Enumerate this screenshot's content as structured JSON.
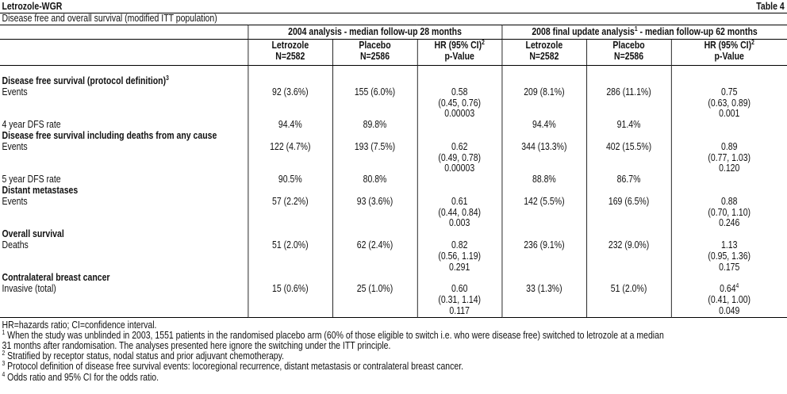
{
  "header": {
    "title": "Letrozole-WGR",
    "table_label": "Table 4",
    "subtitle": "Disease free and overall survival (modified ITT population)"
  },
  "groups": {
    "g2004": "2004 analysis - median follow-up 28 months",
    "g2008_pre": "2008 final update analysis",
    "g2008_sup": "1",
    "g2008_post": " - median follow-up 62 months"
  },
  "columns": {
    "letro": "Letrozole",
    "letro_n": "N=2582",
    "plac": "Placebo",
    "plac_n": "N=2586",
    "hr": "HR (95% CI)",
    "hr_sup": "2",
    "pval": "p-Value"
  },
  "rows": {
    "dfs_title": "Disease free survival (protocol definition)",
    "dfs_title_sup": "3",
    "dfs_events_label": "Events",
    "dfs_e": [
      "92 (3.6%)",
      "155 (6.0%)",
      "0.58",
      "(0.45, 0.76)",
      "0.00003",
      "209 (8.1%)",
      "286 (11.1%)",
      "0.75",
      "(0.63, 0.89)",
      "0.001"
    ],
    "dfs4_label": "4 year DFS rate",
    "dfs4": [
      "94.4%",
      "89.8%",
      "94.4%",
      "91.4%"
    ],
    "dfsany_title": "Disease free survival including deaths from any cause",
    "dfsany_events_label": "Events",
    "dfsany_e": [
      "122 (4.7%)",
      "193 (7.5%)",
      "0.62",
      "(0.49, 0.78)",
      "0.00003",
      "344 (13.3%)",
      "402 (15.5%)",
      "0.89",
      "(0.77, 1.03)",
      "0.120"
    ],
    "dfs5_label": "5 year DFS rate",
    "dfs5": [
      "90.5%",
      "80.8%",
      "88.8%",
      "86.7%"
    ],
    "dm_title": "Distant metastases",
    "dm_events_label": "Events",
    "dm_e": [
      "57 (2.2%)",
      "93 (3.6%)",
      "0.61",
      "(0.44, 0.84)",
      "0.003",
      "142 (5.5%)",
      "169 (6.5%)",
      "0.88",
      "(0.70, 1.10)",
      "0.246"
    ],
    "os_title": "Overall survival",
    "os_label": "Deaths",
    "os_e": [
      "51 (2.0%)",
      "62 (2.4%)",
      "0.82",
      "(0.56, 1.19)",
      "0.291",
      "236 (9.1%)",
      "232 (9.0%)",
      "1.13",
      "(0.95, 1.36)",
      "0.175"
    ],
    "cbc_title": "Contralateral breast cancer",
    "cbc_label": "Invasive (total)",
    "cbc_e": [
      "15 (0.6%)",
      "25 (1.0%)",
      "0.60",
      "(0.31, 1.14)",
      "0.117",
      "33 (1.3%)",
      "51 (2.0%)",
      "0.64",
      "(0.41, 1.00)",
      "0.049"
    ],
    "cbc_sup": "4"
  },
  "notes": {
    "abbr": "HR=hazards ratio; CI=confidence interval.",
    "n1_sup": "1",
    "n1a": " When the study was unblinded in 2003, 1551 patients in the randomised placebo arm (60% of those eligible to switch i.e. who were disease free) switched to letrozole at a median",
    "n1b": "31 months after randomisation. The analyses presented here ignore the switching under the ITT principle.",
    "n2_sup": "2",
    "n2": " Stratified by receptor status, nodal status and prior adjuvant chemotherapy.",
    "n3_sup": "3",
    "n3": " Protocol definition of disease free survival events: locoregional recurrence, distant metastasis or contralateral breast cancer.",
    "n4_sup": "4",
    "n4": " Odds ratio and 95% CI for the odds ratio."
  }
}
